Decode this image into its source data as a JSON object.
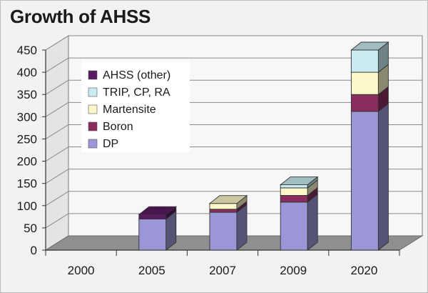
{
  "chart_data": {
    "type": "bar",
    "stacked": true,
    "style": "3d",
    "title": "Growth of AHSS",
    "categories": [
      "2000",
      "2005",
      "2007",
      "2009",
      "2020"
    ],
    "series": [
      {
        "name": "DP",
        "color": "#9b97d6",
        "values": [
          0,
          70,
          85,
          108,
          312
        ]
      },
      {
        "name": "Boron",
        "color": "#8a2d5e",
        "values": [
          0,
          0,
          7,
          15,
          38
        ]
      },
      {
        "name": "Martensite",
        "color": "#fbf7c8",
        "values": [
          0,
          0,
          13,
          17,
          50
        ]
      },
      {
        "name": "TRIP, CP, RA",
        "color": "#c9ecf2",
        "values": [
          0,
          0,
          0,
          7,
          50
        ]
      },
      {
        "name": "AHSS (other)",
        "color": "#5a1a63",
        "values": [
          0,
          10,
          0,
          0,
          0
        ]
      }
    ],
    "legend_order": [
      "AHSS (other)",
      "TRIP, CP, RA",
      "Martensite",
      "Boron",
      "DP"
    ],
    "yticks": [
      0,
      50,
      100,
      150,
      200,
      250,
      300,
      350,
      400,
      450
    ],
    "ylim": [
      0,
      450
    ],
    "legend_position": "upper-left",
    "grid": true
  }
}
